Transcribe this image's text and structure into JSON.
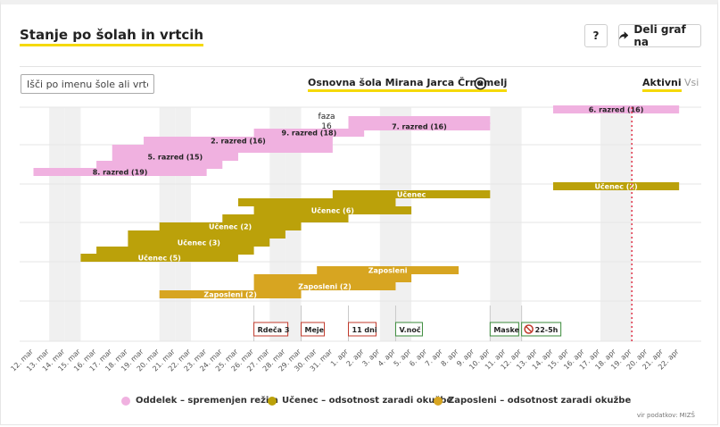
{
  "header": {
    "title": "Stanje po šolah in vrtcih",
    "help_label": "?",
    "share_label": "Deli graf na"
  },
  "filter": {
    "search_placeholder": "Išči po imenu šole ali vrtca",
    "selected_school": "Osnovna šola Mirana Jarca Črnomelj",
    "toggle_active": "Aktivni",
    "toggle_all": "Vsi"
  },
  "legend": [
    {
      "label": "Oddelek – spremenjen režim",
      "color": "#f0b1e0"
    },
    {
      "label": "Učenec – odsotnost zaradi okužbe",
      "color": "#bba10a"
    },
    {
      "label": "Zaposleni – odsotnost zaradi okužbe",
      "color": "#d7a521"
    }
  ],
  "source": "vir podatkov: MIZŠ",
  "chart_data": {
    "type": "gantt",
    "x_axis": {
      "ticks": [
        "12. mar",
        "13. mar",
        "14. mar",
        "15. mar",
        "16. mar",
        "17. mar",
        "18. mar",
        "19. mar",
        "20. mar",
        "21. mar",
        "22. mar",
        "23. mar",
        "24. mar",
        "25. mar",
        "26. mar",
        "27. mar",
        "28. mar",
        "29. mar",
        "30. mar",
        "31. mar",
        "1. apr",
        "2. apr",
        "3. apr",
        "4. apr",
        "5. apr",
        "6. apr",
        "7. apr",
        "8. apr",
        "9. apr",
        "10. apr",
        "11. apr",
        "12. apr",
        "13. apr",
        "14. apr",
        "15. apr",
        "16. apr",
        "17. apr",
        "18. apr",
        "19. apr",
        "20. apr",
        "21. apr",
        "22. apr"
      ],
      "weekend_days": [
        "13. mar",
        "14. mar",
        "20. mar",
        "21. mar",
        "27. mar",
        "28. mar",
        "3. apr",
        "4. apr",
        "10. apr",
        "11. apr",
        "17. apr",
        "18. apr"
      ],
      "today_marker": "19. apr"
    },
    "phase_label": "faza",
    "phase_number": "16",
    "bars": [
      {
        "group": "Oddelek",
        "label": "6. razred (16)",
        "start": "14. apr",
        "end": "22. apr"
      },
      {
        "group": "Oddelek",
        "label": "",
        "start": "1. apr",
        "end": "10. apr"
      },
      {
        "group": "Oddelek",
        "label": "7. razred (16)",
        "start": "1. apr",
        "end": "10. apr"
      },
      {
        "group": "Oddelek",
        "label": "9. razred (18)",
        "start": "26. mar",
        "end": "2. apr"
      },
      {
        "group": "Oddelek",
        "label": "2. razred (16)",
        "start": "19. mar",
        "end": "31. mar"
      },
      {
        "group": "Oddelek",
        "label": "",
        "start": "17. mar",
        "end": "31. mar"
      },
      {
        "group": "Oddelek",
        "label": "5. razred (15)",
        "start": "17. mar",
        "end": "25. mar"
      },
      {
        "group": "Oddelek",
        "label": "",
        "start": "16. mar",
        "end": "24. mar"
      },
      {
        "group": "Oddelek",
        "label": "8. razred (19)",
        "start": "12. mar",
        "end": "23. mar"
      },
      {
        "group": "Učenec",
        "label": "Učenec (2)",
        "start": "14. apr",
        "end": "22. apr"
      },
      {
        "group": "Učenec",
        "label": "Učenec",
        "start": "31. mar",
        "end": "10. apr"
      },
      {
        "group": "Učenec",
        "label": "",
        "start": "25. mar",
        "end": "4. apr"
      },
      {
        "group": "Učenec",
        "label": "Učenec (6)",
        "start": "26. mar",
        "end": "5. apr"
      },
      {
        "group": "Učenec",
        "label": "",
        "start": "24. mar",
        "end": "1. apr"
      },
      {
        "group": "Učenec",
        "label": "Učenec (2)",
        "start": "20. mar",
        "end": "29. mar"
      },
      {
        "group": "Učenec",
        "label": "",
        "start": "18. mar",
        "end": "28. mar"
      },
      {
        "group": "Učenec",
        "label": "Učenec (3)",
        "start": "18. mar",
        "end": "27. mar"
      },
      {
        "group": "Učenec",
        "label": "",
        "start": "16. mar",
        "end": "26. mar"
      },
      {
        "group": "Učenec",
        "label": "Učenec (5)",
        "start": "15. mar",
        "end": "25. mar"
      },
      {
        "group": "Zaposleni",
        "label": "Zaposleni",
        "start": "30. mar",
        "end": "8. apr"
      },
      {
        "group": "Zaposleni",
        "label": "",
        "start": "26. mar",
        "end": "5. apr"
      },
      {
        "group": "Zaposleni",
        "label": "Zaposleni (2)",
        "start": "26. mar",
        "end": "4. apr"
      },
      {
        "group": "Zaposleni",
        "label": "Zaposleni (2)",
        "start": "20. mar",
        "end": "29. mar"
      }
    ],
    "events": [
      {
        "label": "Rdeča 3",
        "date": "26. mar",
        "color": "#c0392b",
        "icon": ""
      },
      {
        "label": "Meje",
        "date": "29. mar",
        "color": "#c0392b",
        "icon": ""
      },
      {
        "label": "11 dni",
        "date": "1. apr",
        "color": "#c0392b",
        "icon": ""
      },
      {
        "label": "V.noč",
        "date": "4. apr",
        "color": "#3a8a3a",
        "icon": ""
      },
      {
        "label": "Maske",
        "date": "10. apr",
        "color": "#3a8a3a",
        "icon": ""
      },
      {
        "label": "22-5h",
        "date": "12. apr",
        "color": "#3a8a3a",
        "icon": "curfew-icon"
      }
    ],
    "colors": {
      "Oddelek": "#f0b1e0",
      "Učenec": "#bba10a",
      "Zaposleni": "#d7a521",
      "today_line": "#e0354a"
    }
  }
}
